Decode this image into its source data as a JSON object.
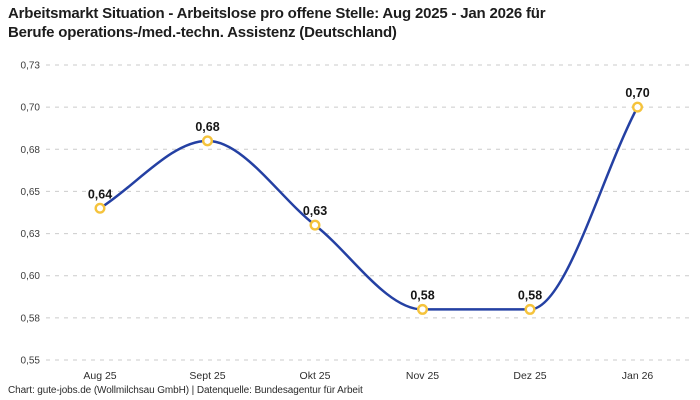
{
  "title": {
    "line1": "Arbeitsmarkt Situation - Arbeitslose pro offene Stelle: Aug 2025 - Jan 2026 für",
    "line2": "Berufe operations-/med.-techn. Assistenz (Deutschland)"
  },
  "footer": "Chart: gute-jobs.de (Wollmilchsau GmbH) | Datenquelle: Bundesagentur für Arbeit",
  "chart_data": {
    "type": "line",
    "title": "Arbeitsmarkt Situation - Arbeitslose pro offene Stelle: Aug 2025 - Jan 2026 für Berufe operations-/med.-techn. Assistenz (Deutschland)",
    "categories": [
      "Aug 25",
      "Sept 25",
      "Okt 25",
      "Nov 25",
      "Dez 25",
      "Jan 26"
    ],
    "values": [
      0.64,
      0.68,
      0.63,
      0.58,
      0.58,
      0.7
    ],
    "point_labels": [
      "0,64",
      "0,68",
      "0,63",
      "0,58",
      "0,58",
      "0,70"
    ],
    "xlabel": "",
    "ylabel": "",
    "ylim": [
      0.55,
      0.725
    ],
    "yticks": {
      "values": [
        0.55,
        0.575,
        0.6,
        0.625,
        0.65,
        0.675,
        0.7,
        0.725
      ],
      "labels": [
        "0,55",
        "0,58",
        "0,60",
        "0,63",
        "0,65",
        "0,68",
        "0,70",
        "0,73"
      ]
    },
    "grid": "horizontal-dashed",
    "legend": "none",
    "line_color": "#2440a3",
    "marker_color": "#f5c33c",
    "marker_fill": "#ffffff",
    "grid_color": "#cbcbcb",
    "tick_color": "#3c3c3c",
    "point_label_color": "#161616"
  }
}
